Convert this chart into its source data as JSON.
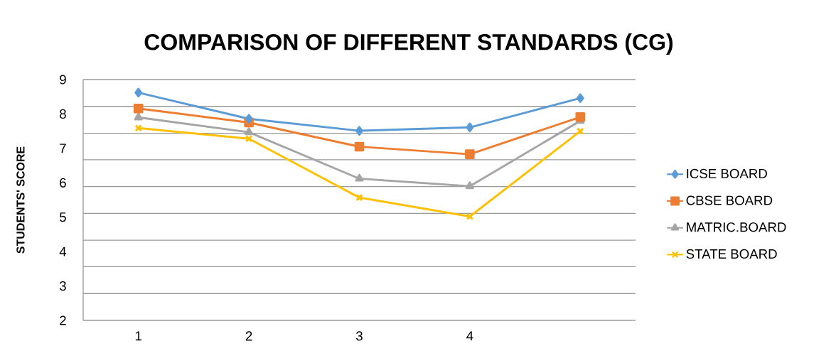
{
  "chart_data": {
    "type": "line",
    "title": "COMPARISON OF DIFFERENT STANDARDS (CG)",
    "ylabel": "STUDENTS' SCORE",
    "categories": [
      "1",
      "2",
      "3",
      "4",
      null
    ],
    "series": [
      {
        "name": "ICSE BOARD",
        "color": "#5b9bd5",
        "marker": "diamond",
        "values": [
          8.62,
          7.86,
          7.51,
          7.61,
          8.46
        ]
      },
      {
        "name": "CBSE BOARD",
        "color": "#ed7d31",
        "marker": "square",
        "values": [
          8.16,
          7.75,
          7.05,
          6.83,
          7.91
        ]
      },
      {
        "name": "MATRIC.BOARD",
        "color": "#a5a5a5",
        "marker": "triangle",
        "values": [
          7.9,
          7.47,
          6.12,
          5.9,
          7.8
        ]
      },
      {
        "name": "STATE BOARD",
        "color": "#ffc000",
        "marker": "cross",
        "values": [
          7.59,
          7.28,
          5.57,
          5.02,
          7.5
        ]
      }
    ],
    "ylim": [
      2,
      9
    ],
    "yticks": [
      2,
      3,
      4,
      5,
      6,
      7,
      8,
      9,
      {
        "value": 2.78,
        "label": null
      },
      {
        "value": 3.56,
        "label": null
      },
      {
        "value": 4.33,
        "label": null
      },
      {
        "value": 5.11,
        "label": null
      },
      {
        "value": 5.89,
        "label": null
      },
      {
        "value": 6.67,
        "label": null
      },
      {
        "value": 7.44,
        "label": null
      },
      {
        "value": 8.22,
        "label": null
      }
    ],
    "grid": "y",
    "legend": "right",
    "line_style": "solid"
  }
}
